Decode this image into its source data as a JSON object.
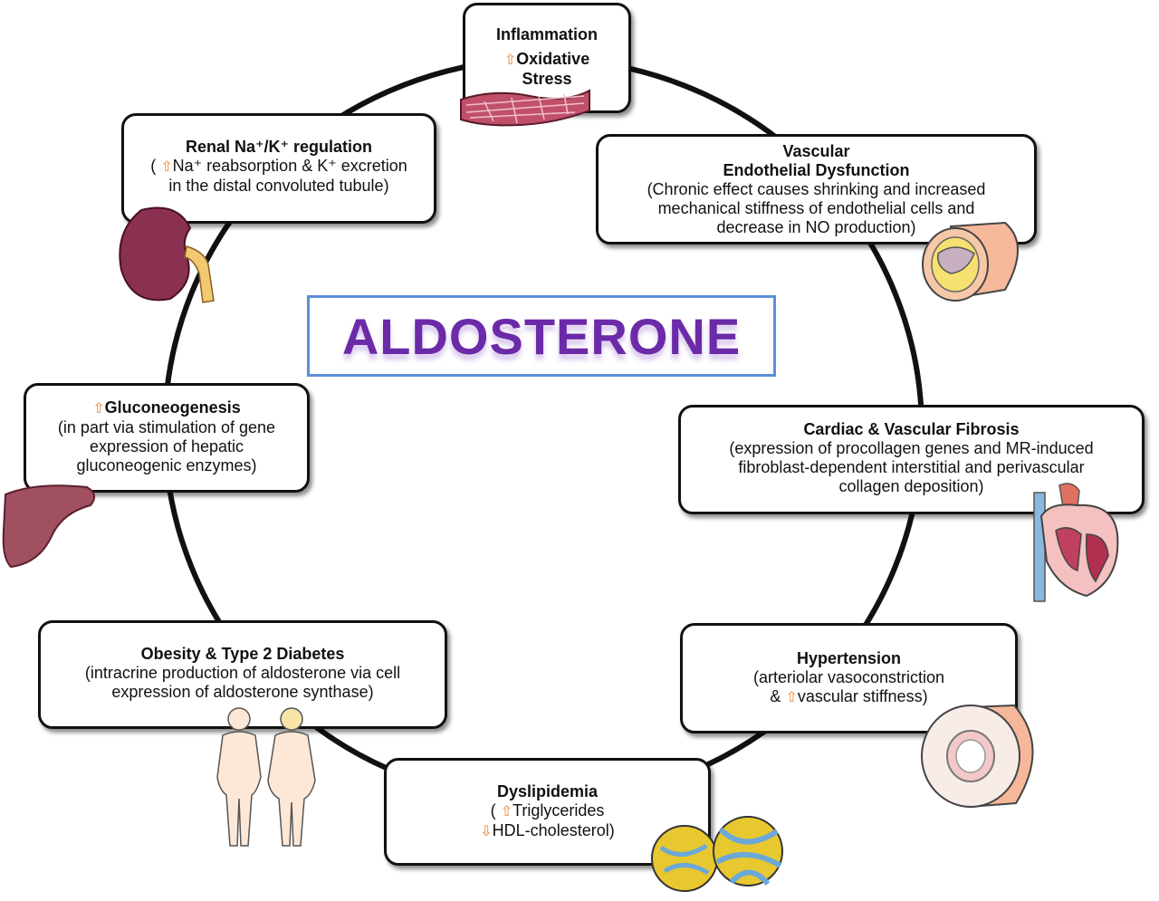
{
  "center": {
    "title": "ALDOSTERONE"
  },
  "boxes": {
    "inflammation": {
      "title": "Inflammation",
      "line1": "Oxidative",
      "line2": "Stress"
    },
    "vascular": {
      "title1": "Vascular",
      "title2": "Endothelial Dysfunction",
      "line1": "(Chronic effect causes shrinking and increased",
      "line2": "mechanical stiffness of endothelial cells and",
      "line3": "decrease in NO  production)"
    },
    "cardiac": {
      "title": "Cardiac & Vascular Fibrosis",
      "line1": "(expression of procollagen genes and MR-induced",
      "line2": "fibroblast-dependent interstitial and perivascular",
      "line3": "collagen deposition)"
    },
    "hypertension": {
      "title": "Hypertension",
      "line1": "(arteriolar vasoconstriction",
      "line2_pre": "& ",
      "line2": "vascular stiffness)"
    },
    "dyslipidemia": {
      "title": "Dyslipidemia",
      "line1_pre": "( ",
      "line1": "Triglycerides",
      "line2": "HDL-cholesterol)"
    },
    "obesity": {
      "title": "Obesity & Type 2 Diabetes",
      "line1": "(intracrine production of aldosterone via cell",
      "line2": "expression of aldosterone synthase)"
    },
    "gluconeogenesis": {
      "title": "Gluconeogenesis",
      "line1": "(in part via stimulation of  gene",
      "line2": "expression of hepatic",
      "line3": "gluconeogenic enzymes)"
    },
    "renal": {
      "title": "Renal Na⁺/K⁺ regulation",
      "line1_pre": "( ",
      "line1": "Na⁺ reabsorption & K⁺ excretion",
      "line2": "in the distal convoluted tubule)"
    }
  },
  "arrows": {
    "up": "⇧",
    "down": "⇩"
  },
  "colors": {
    "arrow": "#f0a060",
    "title": "#6b2aa8",
    "frame": "#5a8fd8"
  },
  "icons": [
    "muscle-tissue-icon",
    "artery-plaque-icon",
    "heart-icon",
    "vessel-cross-section-icon",
    "lipoprotein-icon",
    "human-bodies-icon",
    "liver-icon",
    "kidney-icon"
  ]
}
